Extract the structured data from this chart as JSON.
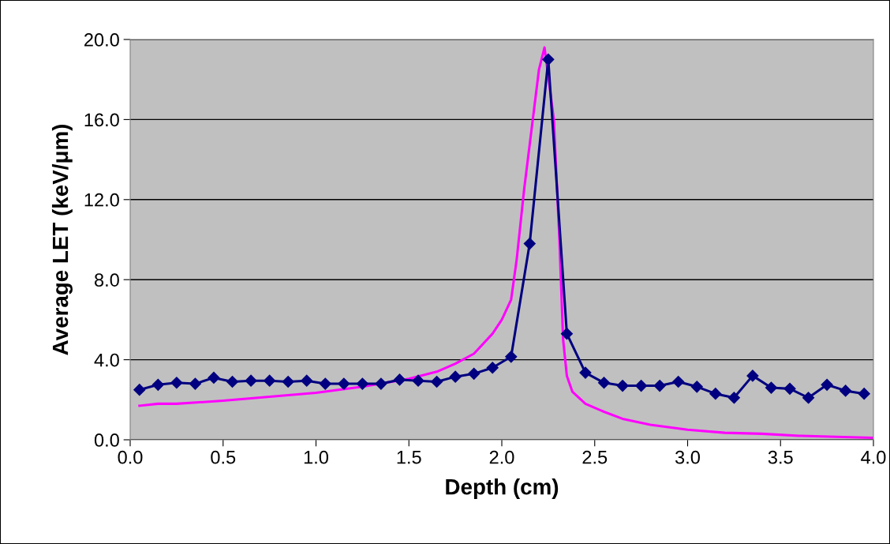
{
  "chart_data": {
    "type": "line",
    "xlabel": "Depth (cm)",
    "ylabel": "Average LET (keV/μm)",
    "xlim": [
      0,
      4
    ],
    "ylim": [
      0,
      20
    ],
    "xticks": [
      {
        "value": 0,
        "label": "0.0"
      },
      {
        "value": 0.5,
        "label": "0.5"
      },
      {
        "value": 1,
        "label": "1.0"
      },
      {
        "value": 1.5,
        "label": "1.5"
      },
      {
        "value": 2,
        "label": "2.0"
      },
      {
        "value": 2.5,
        "label": "2.5"
      },
      {
        "value": 3,
        "label": "3.0"
      },
      {
        "value": 3.5,
        "label": "3.5"
      },
      {
        "value": 4,
        "label": "4.0"
      }
    ],
    "yticks": [
      {
        "value": 0,
        "label": "0.0"
      },
      {
        "value": 4,
        "label": "4.0"
      },
      {
        "value": 8,
        "label": "8.0"
      },
      {
        "value": 12,
        "label": "12.0"
      },
      {
        "value": 16,
        "label": "16.0"
      },
      {
        "value": 20,
        "label": "20.0"
      }
    ],
    "grid": "y",
    "legend": false,
    "series": [
      {
        "color": "#ff00ff",
        "marker": "none",
        "x": [
          0.05,
          0.15,
          0.25,
          0.5,
          0.75,
          1.0,
          1.25,
          1.5,
          1.65,
          1.75,
          1.85,
          1.95,
          2.0,
          2.05,
          2.08,
          2.12,
          2.16,
          2.2,
          2.23,
          2.28,
          2.31,
          2.33,
          2.35,
          2.38,
          2.45,
          2.55,
          2.65,
          2.8,
          3.0,
          3.2,
          3.4,
          3.6,
          3.8,
          4.0
        ],
        "values": [
          1.7,
          1.8,
          1.8,
          1.95,
          2.15,
          2.35,
          2.65,
          3.05,
          3.4,
          3.8,
          4.3,
          5.3,
          6.0,
          7.0,
          9.0,
          12.5,
          15.5,
          18.5,
          19.6,
          16.0,
          10.0,
          5.0,
          3.2,
          2.4,
          1.8,
          1.4,
          1.05,
          0.75,
          0.5,
          0.35,
          0.3,
          0.2,
          0.15,
          0.1
        ]
      },
      {
        "color": "#000080",
        "marker": "diamond",
        "x": [
          0.05,
          0.15,
          0.25,
          0.35,
          0.45,
          0.55,
          0.65,
          0.75,
          0.85,
          0.95,
          1.05,
          1.15,
          1.25,
          1.35,
          1.45,
          1.55,
          1.65,
          1.75,
          1.85,
          1.95,
          2.05,
          2.15,
          2.25,
          2.35,
          2.45,
          2.55,
          2.65,
          2.75,
          2.85,
          2.95,
          3.05,
          3.15,
          3.25,
          3.35,
          3.45,
          3.55,
          3.65,
          3.75,
          3.85,
          3.95
        ],
        "values": [
          2.5,
          2.75,
          2.85,
          2.8,
          3.1,
          2.9,
          2.95,
          2.95,
          2.9,
          2.95,
          2.8,
          2.8,
          2.8,
          2.8,
          3.0,
          2.95,
          2.9,
          3.15,
          3.3,
          3.6,
          4.15,
          9.8,
          19.0,
          5.3,
          3.35,
          2.85,
          2.7,
          2.7,
          2.7,
          2.9,
          2.65,
          2.3,
          2.1,
          3.2,
          2.6,
          2.55,
          2.1,
          2.75,
          2.45,
          2.3
        ]
      }
    ]
  }
}
